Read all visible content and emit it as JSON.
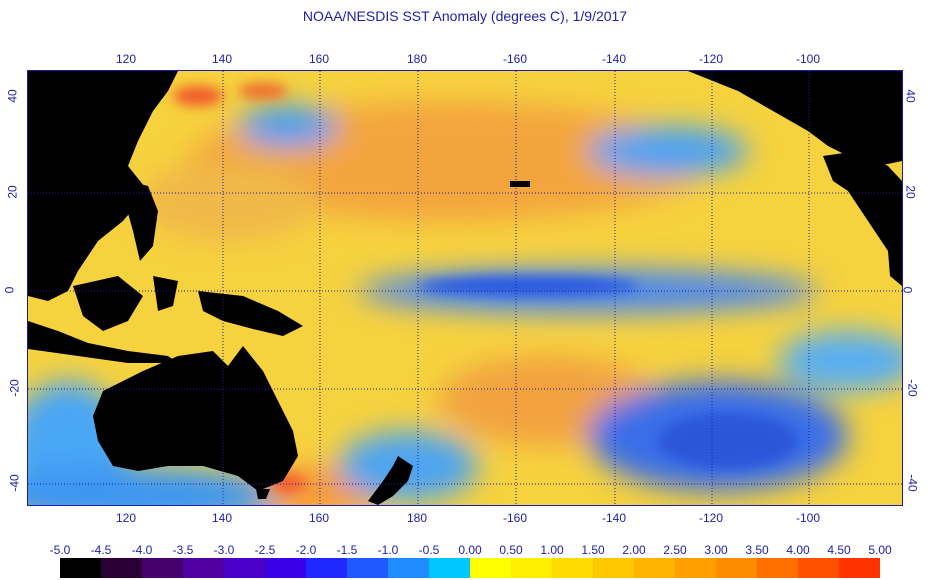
{
  "title": "NOAA/NESDIS SST Anomaly (degrees C), 1/9/2017",
  "lon_labels": [
    "120",
    "140",
    "160",
    "180",
    "-160",
    "-140",
    "-120",
    "-100"
  ],
  "lat_labels": [
    "40",
    "20",
    "0",
    "-20",
    "-40"
  ],
  "legend": {
    "labels": [
      "-5.0",
      "-4.5",
      "-4.0",
      "-3.5",
      "-3.0",
      "-2.5",
      "-2.0",
      "-1.5",
      "-1.0",
      "-0.5",
      "0.00",
      "0.50",
      "1.00",
      "1.50",
      "2.00",
      "2.50",
      "3.00",
      "3.50",
      "4.00",
      "4.50",
      "5.00"
    ],
    "colors": [
      "#000000",
      "#2a0034",
      "#46006e",
      "#5000a0",
      "#4b00c8",
      "#3a00e6",
      "#1e28ff",
      "#1e5aff",
      "#1e8cff",
      "#00c8ff",
      "#ffff00",
      "#ffee00",
      "#ffdc00",
      "#ffc800",
      "#ffb400",
      "#ffa000",
      "#ff8c00",
      "#ff6e00",
      "#ff5000",
      "#ff3200"
    ]
  },
  "colors": {
    "ocean_warm": "#f8d040",
    "ocean_cool": "#3ca0ff",
    "land": "#000000",
    "text": "#1e1eaa"
  }
}
